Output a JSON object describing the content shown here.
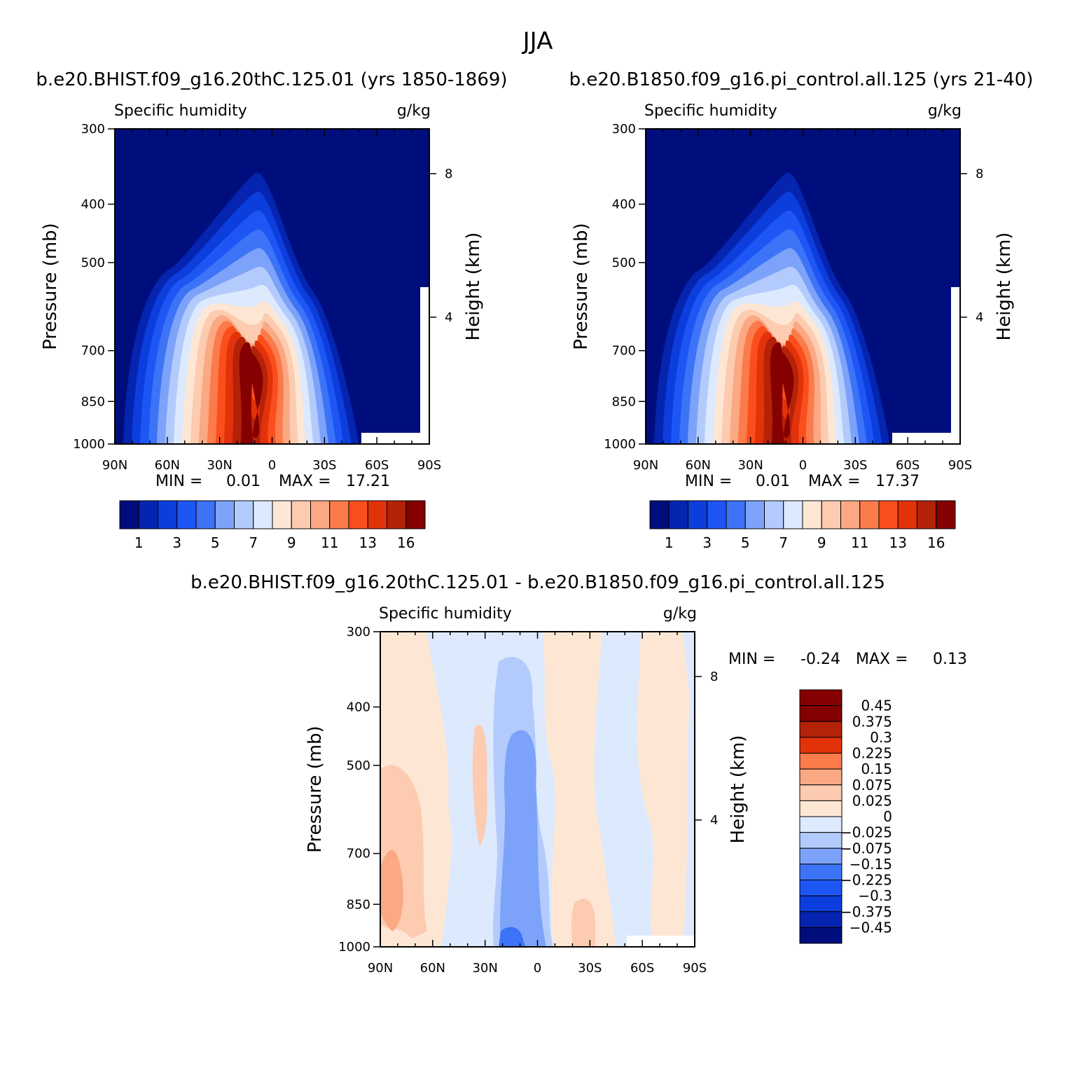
{
  "figure": {
    "title": "JJA"
  },
  "chart_data": [
    {
      "type": "heatmap",
      "title": "b.e20.BHIST.f09_g16.20thC.125.01 (yrs 1850-1869)",
      "left_label": "Specific humidity",
      "right_label": "g/kg",
      "xlabel": "",
      "ylabel": "Pressure (mb)",
      "ylabel_right": "Height (km)",
      "x_ticks": [
        "90N",
        "60N",
        "30N",
        "0",
        "30S",
        "60S",
        "90S"
      ],
      "y_ticks": [
        "300",
        "400",
        "500",
        "700",
        "850",
        "1000"
      ],
      "right_ticks": [
        "8",
        "4"
      ],
      "stats": {
        "min_label": "MIN =",
        "min": "0.01",
        "max_label": "MAX =",
        "max": "17.21"
      },
      "colorbar": {
        "orientation": "horizontal",
        "colors": [
          "#000e7d",
          "#0524b0",
          "#0c3edd",
          "#1d56f5",
          "#3c73f7",
          "#7da2fa",
          "#b3cbfc",
          "#dde9fd",
          "#fde7d4",
          "#fccbb0",
          "#fba884",
          "#fb7b4b",
          "#fb4e1d",
          "#e2320a",
          "#b42208",
          "#850000"
        ],
        "labels": [
          "1",
          "3",
          "5",
          "7",
          "9",
          "11",
          "13",
          "16"
        ]
      }
    },
    {
      "type": "heatmap",
      "title": "b.e20.B1850.f09_g16.pi_control.all.125 (yrs 21-40)",
      "left_label": "Specific humidity",
      "right_label": "g/kg",
      "xlabel": "",
      "ylabel": "Pressure (mb)",
      "ylabel_right": "Height (km)",
      "x_ticks": [
        "90N",
        "60N",
        "30N",
        "0",
        "30S",
        "60S",
        "90S"
      ],
      "y_ticks": [
        "300",
        "400",
        "500",
        "700",
        "850",
        "1000"
      ],
      "right_ticks": [
        "8",
        "4"
      ],
      "stats": {
        "min_label": "MIN =",
        "min": "0.01",
        "max_label": "MAX =",
        "max": "17.37"
      },
      "colorbar": {
        "orientation": "horizontal",
        "colors": [
          "#000e7d",
          "#0524b0",
          "#0c3edd",
          "#1d56f5",
          "#3c73f7",
          "#7da2fa",
          "#b3cbfc",
          "#dde9fd",
          "#fde7d4",
          "#fccbb0",
          "#fba884",
          "#fb7b4b",
          "#fb4e1d",
          "#e2320a",
          "#b42208",
          "#850000"
        ],
        "labels": [
          "1",
          "3",
          "5",
          "7",
          "9",
          "11",
          "13",
          "16"
        ]
      }
    },
    {
      "type": "heatmap",
      "title": "b.e20.BHIST.f09_g16.20thC.125.01 - b.e20.B1850.f09_g16.pi_control.all.125",
      "left_label": "Specific humidity",
      "right_label": "g/kg",
      "xlabel": "",
      "ylabel": "Pressure (mb)",
      "ylabel_right": "Height (km)",
      "x_ticks": [
        "90N",
        "60N",
        "30N",
        "0",
        "30S",
        "60S",
        "90S"
      ],
      "y_ticks": [
        "300",
        "400",
        "500",
        "700",
        "850",
        "1000"
      ],
      "right_ticks": [
        "8",
        "4"
      ],
      "stats": {
        "min_label": "MIN =",
        "min": "-0.24",
        "max_label": "MAX =",
        "max": "0.13"
      },
      "colorbar": {
        "orientation": "vertical",
        "colors": [
          "#850000",
          "#b42208",
          "#e2320a",
          "#fb7b4b",
          "#fba884",
          "#fccbb0",
          "#fde7d4",
          "#dde9fd",
          "#b3cbfc",
          "#7da2fa",
          "#3c73f7",
          "#1d56f5",
          "#0c3edd",
          "#0524b0",
          "#000e7d"
        ],
        "labels": [
          "0.45",
          "0.375",
          "0.3",
          "0.225",
          "0.15",
          "0.075",
          "0.025",
          "0",
          "-0.025",
          "-0.075",
          "-0.15",
          "-0.225",
          "-0.3",
          "-0.375",
          "-0.45"
        ]
      }
    }
  ]
}
